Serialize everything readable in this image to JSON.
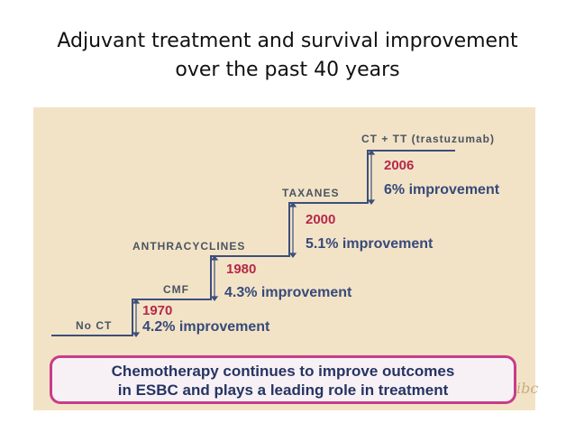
{
  "title": {
    "line1": "Adjuvant treatment and survival improvement",
    "line2": "over the past 40 years"
  },
  "steps": [
    {
      "label": "No CT",
      "year": "1970",
      "improvement": "4.2% improvement"
    },
    {
      "label": "CMF",
      "year": "1980",
      "improvement": "4.3% improvement"
    },
    {
      "label": "ANTHRACYCLINES",
      "year": "2000",
      "improvement": "5.1% improvement"
    },
    {
      "label": "TAXANES",
      "year": "2006",
      "improvement": "6% improvement"
    },
    {
      "label": "CT + TT (trastuzumab)"
    }
  ],
  "banner": {
    "line1": "Chemotherapy continues to improve outcomes",
    "line2": "in ESBC and plays a leading role in treatment"
  },
  "signature": "ibc",
  "colors": {
    "panel_bg": "#f3e3c6",
    "stair_line": "#3c4f7c",
    "year": "#b5284a",
    "improvement": "#364a7a",
    "banner_border": "#c83c8a",
    "banner_text": "#263462"
  }
}
